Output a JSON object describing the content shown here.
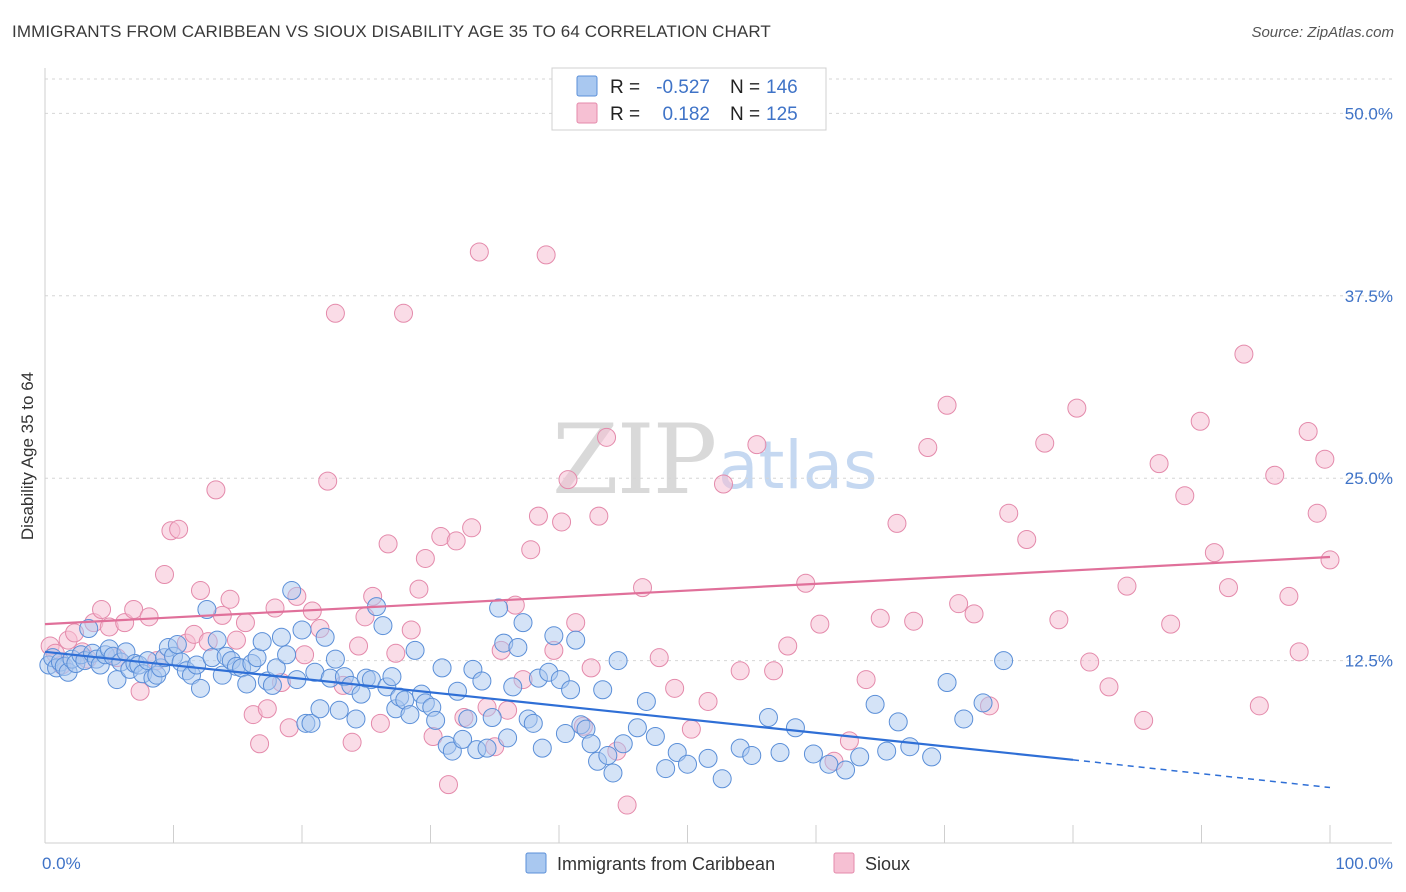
{
  "title": "IMMIGRANTS FROM CARIBBEAN VS SIOUX DISABILITY AGE 35 TO 64 CORRELATION CHART",
  "source": "Source: ZipAtlas.com",
  "watermark": {
    "zip": "ZIP",
    "atlas": "atlas"
  },
  "legend": {
    "rows": [
      {
        "r_label": "R =",
        "r_value": "-0.527",
        "n_label": "N =",
        "n_value": "146"
      },
      {
        "r_label": "R =",
        "r_value": "0.182",
        "n_label": "N =",
        "n_value": "125"
      }
    ]
  },
  "bottom_legend": [
    "Immigrants from Caribbean",
    "Sioux"
  ],
  "colors": {
    "blue_fill": "#a9c8f0",
    "blue_stroke": "#5b8fd8",
    "blue_line": "#2f6fd6",
    "pink_fill": "#f6c0d3",
    "pink_stroke": "#e48aab",
    "pink_line": "#e0709a",
    "grid": "#d6d6d6",
    "tick_label": "#3f73c7"
  },
  "chart_data": {
    "type": "scatter",
    "title": "IMMIGRANTS FROM CARIBBEAN VS SIOUX DISABILITY AGE 35 TO 64 CORRELATION CHART",
    "xlabel": "",
    "ylabel": "Disability Age 35 to 64",
    "xlim": [
      0,
      100
    ],
    "ylim": [
      0,
      50
    ],
    "x_tick_labels": [
      "0.0%",
      "100.0%"
    ],
    "y_ticks": [
      12.5,
      25.0,
      37.5,
      50.0
    ],
    "y_tick_labels": [
      "12.5%",
      "25.0%",
      "37.5%",
      "50.0%"
    ],
    "grid": true,
    "legend_placement": "top-center",
    "series": [
      {
        "name": "Immigrants from Caribbean",
        "r": -0.527,
        "n": 146,
        "trend": {
          "x": [
            0,
            80
          ],
          "y": [
            13.1,
            5.7
          ],
          "dashed_to": [
            100,
            3.8
          ]
        },
        "points": [
          [
            0.3,
            12.2
          ],
          [
            0.6,
            12.7
          ],
          [
            0.9,
            12.0
          ],
          [
            1.2,
            12.4
          ],
          [
            1.5,
            12.1
          ],
          [
            1.8,
            11.7
          ],
          [
            2.1,
            12.6
          ],
          [
            2.4,
            12.3
          ],
          [
            2.8,
            12.9
          ],
          [
            3.1,
            12.5
          ],
          [
            3.4,
            14.7
          ],
          [
            3.7,
            13.0
          ],
          [
            4.0,
            12.6
          ],
          [
            4.3,
            12.2
          ],
          [
            4.7,
            12.9
          ],
          [
            5.0,
            13.3
          ],
          [
            5.3,
            12.8
          ],
          [
            5.6,
            11.2
          ],
          [
            5.9,
            12.4
          ],
          [
            6.3,
            13.1
          ],
          [
            6.6,
            11.9
          ],
          [
            7.0,
            12.3
          ],
          [
            7.3,
            12.2
          ],
          [
            7.6,
            11.6
          ],
          [
            8.0,
            12.5
          ],
          [
            8.4,
            11.3
          ],
          [
            8.7,
            11.5
          ],
          [
            9.0,
            12.0
          ],
          [
            9.3,
            12.7
          ],
          [
            9.6,
            13.4
          ],
          [
            10.0,
            12.8
          ],
          [
            10.3,
            13.6
          ],
          [
            10.6,
            12.4
          ],
          [
            11.0,
            11.8
          ],
          [
            11.4,
            11.5
          ],
          [
            11.8,
            12.2
          ],
          [
            12.1,
            10.6
          ],
          [
            12.6,
            16.0
          ],
          [
            13.0,
            12.7
          ],
          [
            13.4,
            13.9
          ],
          [
            13.8,
            11.5
          ],
          [
            14.1,
            12.8
          ],
          [
            14.5,
            12.5
          ],
          [
            14.9,
            12.1
          ],
          [
            15.3,
            12.0
          ],
          [
            15.7,
            10.9
          ],
          [
            16.1,
            12.3
          ],
          [
            16.5,
            12.7
          ],
          [
            16.9,
            13.8
          ],
          [
            17.3,
            11.1
          ],
          [
            17.7,
            10.8
          ],
          [
            18.0,
            12.0
          ],
          [
            18.4,
            14.1
          ],
          [
            18.8,
            12.9
          ],
          [
            19.2,
            17.3
          ],
          [
            19.6,
            11.2
          ],
          [
            20.0,
            14.6
          ],
          [
            20.3,
            8.2
          ],
          [
            20.7,
            8.2
          ],
          [
            21.0,
            11.7
          ],
          [
            21.4,
            9.2
          ],
          [
            21.8,
            14.1
          ],
          [
            22.2,
            11.3
          ],
          [
            22.6,
            12.6
          ],
          [
            22.9,
            9.1
          ],
          [
            23.3,
            11.4
          ],
          [
            23.8,
            10.8
          ],
          [
            24.2,
            8.5
          ],
          [
            24.6,
            10.2
          ],
          [
            25.0,
            11.3
          ],
          [
            25.4,
            11.2
          ],
          [
            25.8,
            16.2
          ],
          [
            26.3,
            14.9
          ],
          [
            26.6,
            10.7
          ],
          [
            27.0,
            11.4
          ],
          [
            27.3,
            9.2
          ],
          [
            27.6,
            10.0
          ],
          [
            28.0,
            9.8
          ],
          [
            28.4,
            8.8
          ],
          [
            28.8,
            13.2
          ],
          [
            29.3,
            10.2
          ],
          [
            29.6,
            9.6
          ],
          [
            30.1,
            9.3
          ],
          [
            30.4,
            8.4
          ],
          [
            30.9,
            12.0
          ],
          [
            31.3,
            6.7
          ],
          [
            31.7,
            6.3
          ],
          [
            32.1,
            10.4
          ],
          [
            32.5,
            7.1
          ],
          [
            32.9,
            8.5
          ],
          [
            33.3,
            11.9
          ],
          [
            33.6,
            6.4
          ],
          [
            34.0,
            11.1
          ],
          [
            34.4,
            6.5
          ],
          [
            34.8,
            8.6
          ],
          [
            35.3,
            16.1
          ],
          [
            35.7,
            13.7
          ],
          [
            36.0,
            7.2
          ],
          [
            36.4,
            10.7
          ],
          [
            36.8,
            13.4
          ],
          [
            37.2,
            15.1
          ],
          [
            37.6,
            8.5
          ],
          [
            38.0,
            8.2
          ],
          [
            38.4,
            11.3
          ],
          [
            38.7,
            6.5
          ],
          [
            39.2,
            11.7
          ],
          [
            39.6,
            14.2
          ],
          [
            40.1,
            11.2
          ],
          [
            40.5,
            7.5
          ],
          [
            40.9,
            10.5
          ],
          [
            41.3,
            13.9
          ],
          [
            41.7,
            8.1
          ],
          [
            42.1,
            7.8
          ],
          [
            42.5,
            6.8
          ],
          [
            43.0,
            5.6
          ],
          [
            43.4,
            10.5
          ],
          [
            43.8,
            6.0
          ],
          [
            44.2,
            4.8
          ],
          [
            44.6,
            12.5
          ],
          [
            45.0,
            6.8
          ],
          [
            46.1,
            7.9
          ],
          [
            46.8,
            9.7
          ],
          [
            47.5,
            7.3
          ],
          [
            48.3,
            5.1
          ],
          [
            49.2,
            6.2
          ],
          [
            50.0,
            5.4
          ],
          [
            51.6,
            5.8
          ],
          [
            52.7,
            4.4
          ],
          [
            54.1,
            6.5
          ],
          [
            55.0,
            6.0
          ],
          [
            56.3,
            8.6
          ],
          [
            57.2,
            6.2
          ],
          [
            58.4,
            7.9
          ],
          [
            59.8,
            6.1
          ],
          [
            61.0,
            5.4
          ],
          [
            62.3,
            5.0
          ],
          [
            63.4,
            5.9
          ],
          [
            64.6,
            9.5
          ],
          [
            65.5,
            6.3
          ],
          [
            66.4,
            8.3
          ],
          [
            67.3,
            6.6
          ],
          [
            69.0,
            5.9
          ],
          [
            70.2,
            11.0
          ],
          [
            71.5,
            8.5
          ],
          [
            73.0,
            9.6
          ],
          [
            74.6,
            12.5
          ]
        ]
      },
      {
        "name": "Sioux",
        "r": 0.182,
        "n": 125,
        "trend": {
          "x": [
            0,
            100
          ],
          "y": [
            15.0,
            19.6
          ]
        },
        "points": [
          [
            0.4,
            13.5
          ],
          [
            0.8,
            13.0
          ],
          [
            1.3,
            12.2
          ],
          [
            1.8,
            13.9
          ],
          [
            2.3,
            14.4
          ],
          [
            2.9,
            13.1
          ],
          [
            3.3,
            12.6
          ],
          [
            3.8,
            15.1
          ],
          [
            4.4,
            16.0
          ],
          [
            5.0,
            14.8
          ],
          [
            5.6,
            12.7
          ],
          [
            6.2,
            15.1
          ],
          [
            6.9,
            16.0
          ],
          [
            7.4,
            10.4
          ],
          [
            8.1,
            15.5
          ],
          [
            8.7,
            12.5
          ],
          [
            9.3,
            18.4
          ],
          [
            9.8,
            21.4
          ],
          [
            10.4,
            21.5
          ],
          [
            11.0,
            13.7
          ],
          [
            11.6,
            14.3
          ],
          [
            12.1,
            17.3
          ],
          [
            12.7,
            13.8
          ],
          [
            13.3,
            24.2
          ],
          [
            13.8,
            15.6
          ],
          [
            14.4,
            16.7
          ],
          [
            14.9,
            13.9
          ],
          [
            15.6,
            15.1
          ],
          [
            16.2,
            8.8
          ],
          [
            16.7,
            6.8
          ],
          [
            17.3,
            9.2
          ],
          [
            17.9,
            16.1
          ],
          [
            18.4,
            11.0
          ],
          [
            19.0,
            7.9
          ],
          [
            19.6,
            16.9
          ],
          [
            20.2,
            12.9
          ],
          [
            20.8,
            15.9
          ],
          [
            21.4,
            14.7
          ],
          [
            22.0,
            24.8
          ],
          [
            22.6,
            36.3
          ],
          [
            23.2,
            10.8
          ],
          [
            23.9,
            6.9
          ],
          [
            24.4,
            13.5
          ],
          [
            24.9,
            15.5
          ],
          [
            25.5,
            16.9
          ],
          [
            26.1,
            8.2
          ],
          [
            26.7,
            20.5
          ],
          [
            27.3,
            13.0
          ],
          [
            27.9,
            36.3
          ],
          [
            28.5,
            14.6
          ],
          [
            29.1,
            17.4
          ],
          [
            29.6,
            19.5
          ],
          [
            30.2,
            7.3
          ],
          [
            30.8,
            21.0
          ],
          [
            31.4,
            4.0
          ],
          [
            32.0,
            20.7
          ],
          [
            32.6,
            8.6
          ],
          [
            33.2,
            21.6
          ],
          [
            33.8,
            40.5
          ],
          [
            34.4,
            9.3
          ],
          [
            35.0,
            6.6
          ],
          [
            35.5,
            13.2
          ],
          [
            36.0,
            9.1
          ],
          [
            36.6,
            16.3
          ],
          [
            37.2,
            11.2
          ],
          [
            37.8,
            20.1
          ],
          [
            38.4,
            22.4
          ],
          [
            39.0,
            40.3
          ],
          [
            39.6,
            13.2
          ],
          [
            40.2,
            22.0
          ],
          [
            40.7,
            24.9
          ],
          [
            41.3,
            15.1
          ],
          [
            41.9,
            8.0
          ],
          [
            42.5,
            12.0
          ],
          [
            43.1,
            22.4
          ],
          [
            43.7,
            27.8
          ],
          [
            44.5,
            6.3
          ],
          [
            45.3,
            2.6
          ],
          [
            46.5,
            17.5
          ],
          [
            47.8,
            12.7
          ],
          [
            49.0,
            10.6
          ],
          [
            50.3,
            7.8
          ],
          [
            51.6,
            9.7
          ],
          [
            52.8,
            24.6
          ],
          [
            54.1,
            11.8
          ],
          [
            55.4,
            27.3
          ],
          [
            56.7,
            11.8
          ],
          [
            57.8,
            13.5
          ],
          [
            59.2,
            17.8
          ],
          [
            60.3,
            15.0
          ],
          [
            61.4,
            5.6
          ],
          [
            62.6,
            7.0
          ],
          [
            63.9,
            11.2
          ],
          [
            65.0,
            15.4
          ],
          [
            66.3,
            21.9
          ],
          [
            67.6,
            15.2
          ],
          [
            68.7,
            27.1
          ],
          [
            70.2,
            30.0
          ],
          [
            71.1,
            16.4
          ],
          [
            72.3,
            15.7
          ],
          [
            73.5,
            9.4
          ],
          [
            75.0,
            22.6
          ],
          [
            76.4,
            20.8
          ],
          [
            77.8,
            27.4
          ],
          [
            78.9,
            15.3
          ],
          [
            80.3,
            29.8
          ],
          [
            81.3,
            12.4
          ],
          [
            82.8,
            10.7
          ],
          [
            84.2,
            17.6
          ],
          [
            85.5,
            8.4
          ],
          [
            86.7,
            26.0
          ],
          [
            87.6,
            15.0
          ],
          [
            88.7,
            23.8
          ],
          [
            89.9,
            28.9
          ],
          [
            91.0,
            19.9
          ],
          [
            92.1,
            17.5
          ],
          [
            93.3,
            33.5
          ],
          [
            94.5,
            9.4
          ],
          [
            95.7,
            25.2
          ],
          [
            96.8,
            16.9
          ],
          [
            97.6,
            13.1
          ],
          [
            98.3,
            28.2
          ],
          [
            99.0,
            22.6
          ],
          [
            99.6,
            26.3
          ],
          [
            100.0,
            19.4
          ]
        ]
      }
    ]
  }
}
